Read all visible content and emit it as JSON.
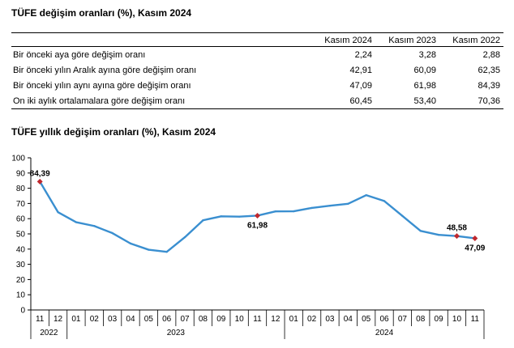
{
  "table_title": "TÜFE değişim oranları (%), Kasım 2024",
  "table": {
    "columns": [
      "",
      "Kasım 2024",
      "Kasım 2023",
      "Kasım 2022"
    ],
    "rows": [
      {
        "label": "Bir önceki aya göre değişim oranı",
        "values": [
          "2,24",
          "3,28",
          "2,88"
        ]
      },
      {
        "label": "Bir önceki yılın Aralık ayına göre değişim oranı",
        "values": [
          "42,91",
          "60,09",
          "62,35"
        ]
      },
      {
        "label": "Bir önceki yılın aynı ayına göre değişim oranı",
        "values": [
          "47,09",
          "61,98",
          "84,39"
        ]
      },
      {
        "label": "On iki aylık ortalamalara göre değişim oranı",
        "values": [
          "60,45",
          "53,40",
          "70,36"
        ]
      }
    ]
  },
  "chart_title": "TÜFE yıllık değişim oranları (%), Kasım 2024",
  "chart_data": {
    "type": "line",
    "title": "TÜFE yıllık değişim oranları (%), Kasım 2024",
    "xlabel": "",
    "ylabel": "",
    "ylim": [
      0,
      100
    ],
    "yticks": [
      0,
      10,
      20,
      30,
      40,
      50,
      60,
      70,
      80,
      90,
      100
    ],
    "categories": [
      "11",
      "12",
      "01",
      "02",
      "03",
      "04",
      "05",
      "06",
      "07",
      "08",
      "09",
      "10",
      "11",
      "12",
      "01",
      "02",
      "03",
      "04",
      "05",
      "06",
      "07",
      "08",
      "09",
      "10",
      "11"
    ],
    "year_groups": [
      {
        "label": "2022",
        "start": 0,
        "end": 1
      },
      {
        "label": "2023",
        "start": 2,
        "end": 13
      },
      {
        "label": "2024",
        "start": 14,
        "end": 24
      }
    ],
    "series": [
      {
        "name": "",
        "color": "#3a8fd0",
        "values": [
          84.39,
          64.27,
          57.68,
          55.18,
          50.51,
          43.68,
          39.59,
          38.21,
          47.83,
          58.94,
          61.53,
          61.36,
          61.98,
          64.77,
          64.86,
          67.07,
          68.5,
          69.8,
          75.45,
          71.6,
          61.78,
          51.97,
          49.38,
          48.58,
          47.09
        ]
      }
    ],
    "annotations": [
      {
        "index": 0,
        "label": "84,39",
        "position": "above"
      },
      {
        "index": 12,
        "label": "61,98",
        "position": "below"
      },
      {
        "index": 23,
        "label": "48,58",
        "position": "above"
      },
      {
        "index": 24,
        "label": "47,09",
        "position": "below"
      }
    ],
    "marker_color": "#c0282e",
    "grid": false
  }
}
